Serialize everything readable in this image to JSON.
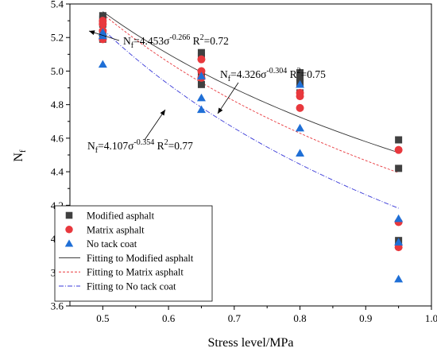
{
  "chart_data": {
    "type": "scatter",
    "xlabel": "Stress level/MPa",
    "ylabel": "N",
    "ylabel_sub": "f",
    "xlim": [
      0.45,
      1.0
    ],
    "ylim": [
      3.6,
      5.4
    ],
    "xticks": [
      "0.5",
      "0.6",
      "0.7",
      "0.8",
      "0.9",
      "1.0"
    ],
    "yticks": [
      "3.6",
      "3.8",
      "4.0",
      "4.2",
      "4.4",
      "4.6",
      "4.8",
      "5.0",
      "5.2",
      "5.4"
    ],
    "series": [
      {
        "name": "Modified asphalt",
        "marker": "square",
        "color": "#404040",
        "points": [
          [
            0.5,
            5.33
          ],
          [
            0.5,
            5.31
          ],
          [
            0.5,
            5.28
          ],
          [
            0.5,
            5.22
          ],
          [
            0.5,
            5.19
          ],
          [
            0.65,
            5.11
          ],
          [
            0.65,
            5.09
          ],
          [
            0.65,
            4.98
          ],
          [
            0.65,
            4.92
          ],
          [
            0.8,
            4.99
          ],
          [
            0.8,
            4.96
          ],
          [
            0.8,
            4.93
          ],
          [
            0.8,
            4.87
          ],
          [
            0.95,
            4.59
          ],
          [
            0.95,
            4.42
          ],
          [
            0.95,
            3.99
          ]
        ]
      },
      {
        "name": "Matrix asphalt",
        "marker": "circle",
        "color": "#e8383d",
        "points": [
          [
            0.5,
            5.3
          ],
          [
            0.5,
            5.28
          ],
          [
            0.5,
            5.24
          ],
          [
            0.5,
            5.19
          ],
          [
            0.65,
            5.07
          ],
          [
            0.65,
            5.0
          ],
          [
            0.65,
            4.96
          ],
          [
            0.8,
            4.87
          ],
          [
            0.8,
            4.85
          ],
          [
            0.8,
            4.78
          ],
          [
            0.95,
            4.53
          ],
          [
            0.95,
            4.1
          ],
          [
            0.95,
            3.95
          ]
        ]
      },
      {
        "name": "No tack coat",
        "marker": "triangle",
        "color": "#1f6fd6",
        "points": [
          [
            0.5,
            5.23
          ],
          [
            0.5,
            5.21
          ],
          [
            0.5,
            5.04
          ],
          [
            0.65,
            4.97
          ],
          [
            0.65,
            4.84
          ],
          [
            0.65,
            4.77
          ],
          [
            0.8,
            4.92
          ],
          [
            0.8,
            4.66
          ],
          [
            0.8,
            4.51
          ],
          [
            0.95,
            4.12
          ],
          [
            0.95,
            3.98
          ],
          [
            0.95,
            3.76
          ]
        ]
      }
    ],
    "fits": [
      {
        "name": "Fitting to Modified asphalt",
        "a": 4.453,
        "b": -0.266,
        "color": "#333333",
        "dash": "",
        "eq_a": "4.453",
        "eq_b": "-0.266",
        "r2": "0.72"
      },
      {
        "name": "Fitting to Matrix asphalt",
        "a": 4.326,
        "b": -0.304,
        "color": "#e8383d",
        "dash": "3,2",
        "eq_a": "4.326",
        "eq_b": "-0.304",
        "r2": "0.75"
      },
      {
        "name": "Fitting to No tack coat",
        "a": 4.107,
        "b": -0.354,
        "color": "#3a3ad8",
        "dash": "6,2,1,2",
        "eq_a": "4.107",
        "eq_b": "-0.354",
        "r2": "0.77"
      }
    ],
    "eq_text": {
      "n": "N",
      "f": "f",
      "eq": "=",
      "sigma": "σ",
      "r": " R",
      "sq": "2",
      "r_eq": "="
    },
    "legend": {
      "position": "bottom-left"
    }
  }
}
